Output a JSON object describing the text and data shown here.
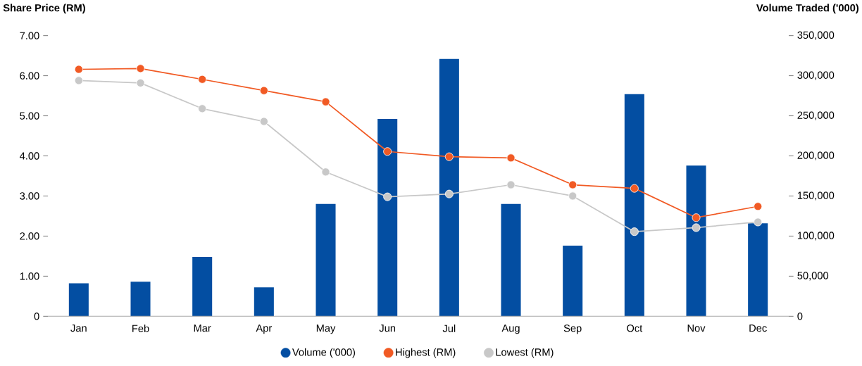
{
  "chart_data": {
    "type": "bar",
    "ylabel": "Share Price (RM)",
    "y2label": "Volume Traded ('000)",
    "categories": [
      "Jan",
      "Feb",
      "Mar",
      "Apr",
      "May",
      "Jun",
      "Jul",
      "Aug",
      "Sep",
      "Oct",
      "Nov",
      "Dec"
    ],
    "series": [
      {
        "name": "Volume ('000)",
        "axis": "y2",
        "color": "#034ea2",
        "values": [
          41000,
          43000,
          74000,
          36000,
          140000,
          246000,
          321000,
          140000,
          88000,
          277000,
          188000,
          116000
        ]
      },
      {
        "name": "Highest (RM)",
        "type": "line",
        "color": "#f15a24",
        "values": [
          6.16,
          6.18,
          5.91,
          5.63,
          5.35,
          4.11,
          3.98,
          3.95,
          3.28,
          3.19,
          2.46,
          2.74
        ]
      },
      {
        "name": "Lowest (RM)",
        "type": "line",
        "color": "#c8c8c8",
        "values": [
          5.88,
          5.82,
          5.18,
          4.86,
          3.6,
          2.98,
          3.05,
          3.28,
          3.0,
          2.11,
          2.21,
          2.35
        ]
      }
    ],
    "ylim": [
      0,
      7
    ],
    "yticks": [
      0,
      {
        "value": 1,
        "label": "1.00"
      },
      {
        "value": 2,
        "label": "2.00"
      },
      {
        "value": 3,
        "label": "3.00"
      },
      {
        "value": 4,
        "label": "4.00"
      },
      {
        "value": 5,
        "label": "5.00"
      },
      {
        "value": 6,
        "label": "6.00"
      },
      {
        "value": 7,
        "label": "7.00"
      }
    ],
    "y2lim": [
      0,
      350000
    ],
    "y2ticks": [
      0,
      {
        "value": 50000,
        "label": "50,000"
      },
      {
        "value": 100000,
        "label": "100,000"
      },
      {
        "value": 150000,
        "label": "150,000"
      },
      {
        "value": 200000,
        "label": "200,000"
      },
      {
        "value": 250000,
        "label": "250,000"
      },
      {
        "value": 300000,
        "label": "300,000"
      },
      {
        "value": 350000,
        "label": "350,000"
      }
    ],
    "legend": "bottom",
    "marker": "circle"
  }
}
